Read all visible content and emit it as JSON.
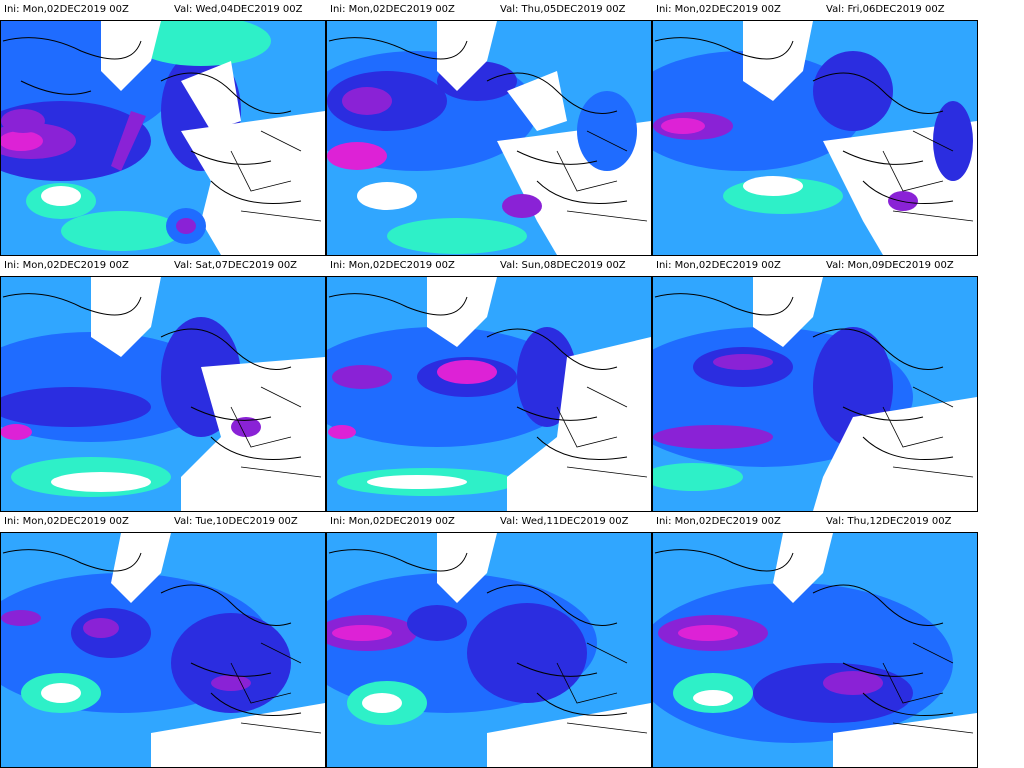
{
  "colors": {
    "land_white": "#ffffff",
    "cyan_low": "#2ef0c8",
    "light_blue": "#30a6ff",
    "mid_blue": "#1f6cff",
    "deep_blue": "#2b2de0",
    "purple": "#8a22d6",
    "magenta": "#dd22d6",
    "coastline": "#000000"
  },
  "labels": {
    "ini_prefix": "Ini:",
    "val_prefix": "Val:"
  },
  "panels": [
    {
      "ini_label": "Ini:",
      "ini": "Mon,02DEC2019  00Z",
      "val_label": "Val:",
      "valid": "Wed,04DEC2019  00Z"
    },
    {
      "ini_label": "Ini:",
      "ini": "Mon,02DEC2019  00Z",
      "val_label": "Val:",
      "valid": "Thu,05DEC2019  00Z"
    },
    {
      "ini_label": "Ini:",
      "ini": "Mon,02DEC2019  00Z",
      "val_label": "Val:",
      "valid": "Fri,06DEC2019  00Z"
    },
    {
      "ini_label": "Ini:",
      "ini": "Mon,02DEC2019  00Z",
      "val_label": "Val:",
      "valid": "Sat,07DEC2019  00Z"
    },
    {
      "ini_label": "Ini:",
      "ini": "Mon,02DEC2019  00Z",
      "val_label": "Val:",
      "valid": "Sun,08DEC2019  00Z"
    },
    {
      "ini_label": "Ini:",
      "ini": "Mon,02DEC2019  00Z",
      "val_label": "Val:",
      "valid": "Mon,09DEC2019  00Z"
    },
    {
      "ini_label": "Ini:",
      "ini": "Mon,02DEC2019  00Z",
      "val_label": "Val:",
      "valid": "Tue,10DEC2019  00Z"
    },
    {
      "ini_label": "Ini:",
      "ini": "Mon,02DEC2019  00Z",
      "val_label": "Val:",
      "valid": "Wed,11DEC2019  00Z"
    },
    {
      "ini_label": "Ini:",
      "ini": "Mon,02DEC2019  00Z",
      "val_label": "Val:",
      "valid": "Thu,12DEC2019  00Z"
    }
  ]
}
